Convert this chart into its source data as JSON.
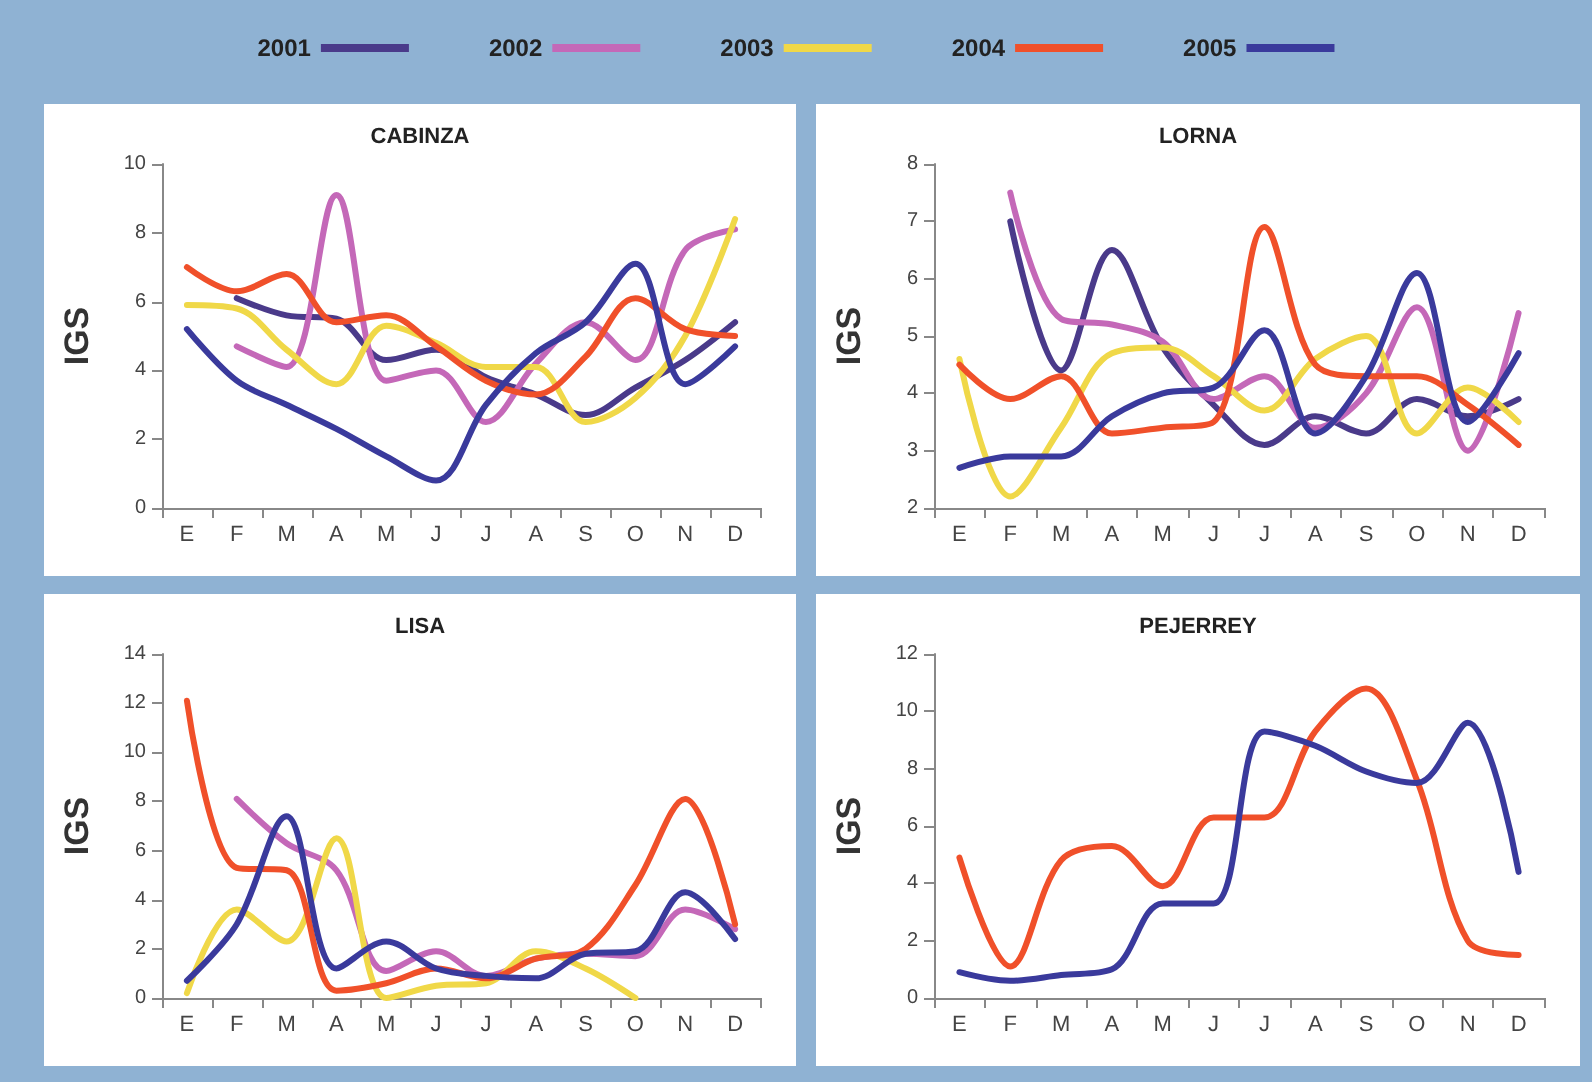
{
  "chart_data": [
    {
      "type": "line",
      "title": "CABINZA",
      "ylabel": "IGS",
      "categories": [
        "E",
        "F",
        "M",
        "A",
        "M",
        "J",
        "J",
        "A",
        "S",
        "O",
        "N",
        "D"
      ],
      "ylim": [
        0,
        10
      ],
      "yticks": [
        0,
        2,
        4,
        6,
        8,
        10
      ],
      "legend": "top",
      "grid": false,
      "marker": "none",
      "series": [
        {
          "name": "2001",
          "color": "#4a3a8a",
          "values": [
            null,
            6.1,
            5.6,
            5.5,
            4.3,
            4.6,
            3.8,
            3.3,
            2.7,
            3.5,
            4.3,
            5.4
          ]
        },
        {
          "name": "2002",
          "color": "#c468b8",
          "values": [
            null,
            4.7,
            4.1,
            9.1,
            3.7,
            4.0,
            2.5,
            4.2,
            5.4,
            4.3,
            7.5,
            8.1
          ]
        },
        {
          "name": "2003",
          "color": "#f0d848",
          "values": [
            5.9,
            5.8,
            4.6,
            3.6,
            5.3,
            4.8,
            4.1,
            4.1,
            2.5,
            3.2,
            5.0,
            8.4
          ]
        },
        {
          "name": "2004",
          "color": "#f0502a",
          "values": [
            7.0,
            6.3,
            6.8,
            5.4,
            5.6,
            4.7,
            3.7,
            3.3,
            4.4,
            6.1,
            5.2,
            5.0
          ]
        },
        {
          "name": "2005",
          "color": "#3a3a9c",
          "values": [
            5.2,
            3.7,
            3.0,
            2.3,
            1.5,
            0.8,
            3.0,
            4.5,
            5.4,
            7.1,
            3.6,
            4.7
          ]
        }
      ]
    },
    {
      "type": "line",
      "title": "LORNA",
      "ylabel": "IGS",
      "categories": [
        "E",
        "F",
        "M",
        "A",
        "M",
        "J",
        "J",
        "A",
        "S",
        "O",
        "N",
        "D"
      ],
      "ylim": [
        2,
        8
      ],
      "yticks": [
        2,
        3,
        4,
        5,
        6,
        7,
        8
      ],
      "grid": false,
      "marker": "none",
      "series": [
        {
          "name": "2001",
          "color": "#4a3a8a",
          "values": [
            null,
            7.0,
            4.4,
            6.5,
            4.8,
            3.8,
            3.1,
            3.6,
            3.3,
            3.9,
            3.6,
            3.9
          ]
        },
        {
          "name": "2002",
          "color": "#c468b8",
          "values": [
            null,
            7.5,
            5.3,
            5.2,
            4.9,
            3.9,
            4.3,
            3.4,
            4.0,
            5.5,
            3.0,
            5.4
          ]
        },
        {
          "name": "2003",
          "color": "#f0d848",
          "values": [
            4.6,
            2.2,
            3.4,
            4.7,
            4.8,
            4.3,
            3.7,
            4.6,
            5.0,
            3.3,
            4.1,
            3.5
          ]
        },
        {
          "name": "2004",
          "color": "#f0502a",
          "values": [
            4.5,
            3.9,
            4.3,
            3.3,
            3.4,
            3.5,
            6.9,
            4.5,
            4.3,
            4.3,
            3.8,
            3.1
          ]
        },
        {
          "name": "2005",
          "color": "#3a3a9c",
          "values": [
            2.7,
            2.9,
            2.9,
            3.6,
            4.0,
            4.1,
            5.1,
            3.3,
            4.3,
            6.1,
            3.5,
            4.7
          ]
        }
      ]
    },
    {
      "type": "line",
      "title": "LISA",
      "ylabel": "IGS",
      "categories": [
        "E",
        "F",
        "M",
        "A",
        "M",
        "J",
        "J",
        "A",
        "S",
        "O",
        "N",
        "D"
      ],
      "ylim": [
        0,
        14
      ],
      "yticks": [
        0,
        2,
        4,
        6,
        8,
        10,
        12,
        14
      ],
      "grid": false,
      "marker": "none",
      "series": [
        {
          "name": "2002",
          "color": "#c468b8",
          "values": [
            null,
            8.1,
            6.3,
            5.2,
            1.1,
            1.9,
            0.9,
            1.6,
            1.8,
            1.7,
            3.6,
            2.8
          ]
        },
        {
          "name": "2003",
          "color": "#f0d848",
          "values": [
            0.2,
            3.6,
            2.3,
            6.5,
            0.0,
            0.5,
            0.6,
            1.9,
            1.2,
            0.0,
            null,
            null
          ]
        },
        {
          "name": "2004",
          "color": "#f0502a",
          "values": [
            12.1,
            5.3,
            5.2,
            0.3,
            0.6,
            1.2,
            0.8,
            1.6,
            2.0,
            4.6,
            8.1,
            3.0
          ]
        },
        {
          "name": "2005",
          "color": "#3a3a9c",
          "values": [
            0.7,
            3.0,
            7.4,
            1.2,
            2.3,
            1.2,
            0.9,
            0.8,
            1.8,
            1.9,
            4.3,
            2.4
          ]
        }
      ]
    },
    {
      "type": "line",
      "title": "PEJERREY",
      "ylabel": "IGS",
      "categories": [
        "E",
        "F",
        "M",
        "A",
        "M",
        "J",
        "J",
        "A",
        "S",
        "O",
        "N",
        "D"
      ],
      "ylim": [
        0,
        12
      ],
      "yticks": [
        0,
        2,
        4,
        6,
        8,
        10,
        12
      ],
      "grid": false,
      "marker": "none",
      "series": [
        {
          "name": "2004",
          "color": "#f0502a",
          "values": [
            4.9,
            1.1,
            4.8,
            5.3,
            3.9,
            6.3,
            6.3,
            9.3,
            10.8,
            7.6,
            2.0,
            1.5
          ]
        },
        {
          "name": "2005",
          "color": "#3a3a9c",
          "values": [
            0.9,
            0.6,
            0.8,
            1.0,
            3.3,
            3.3,
            9.3,
            8.8,
            7.9,
            7.5,
            9.6,
            4.4
          ]
        }
      ]
    }
  ]
}
